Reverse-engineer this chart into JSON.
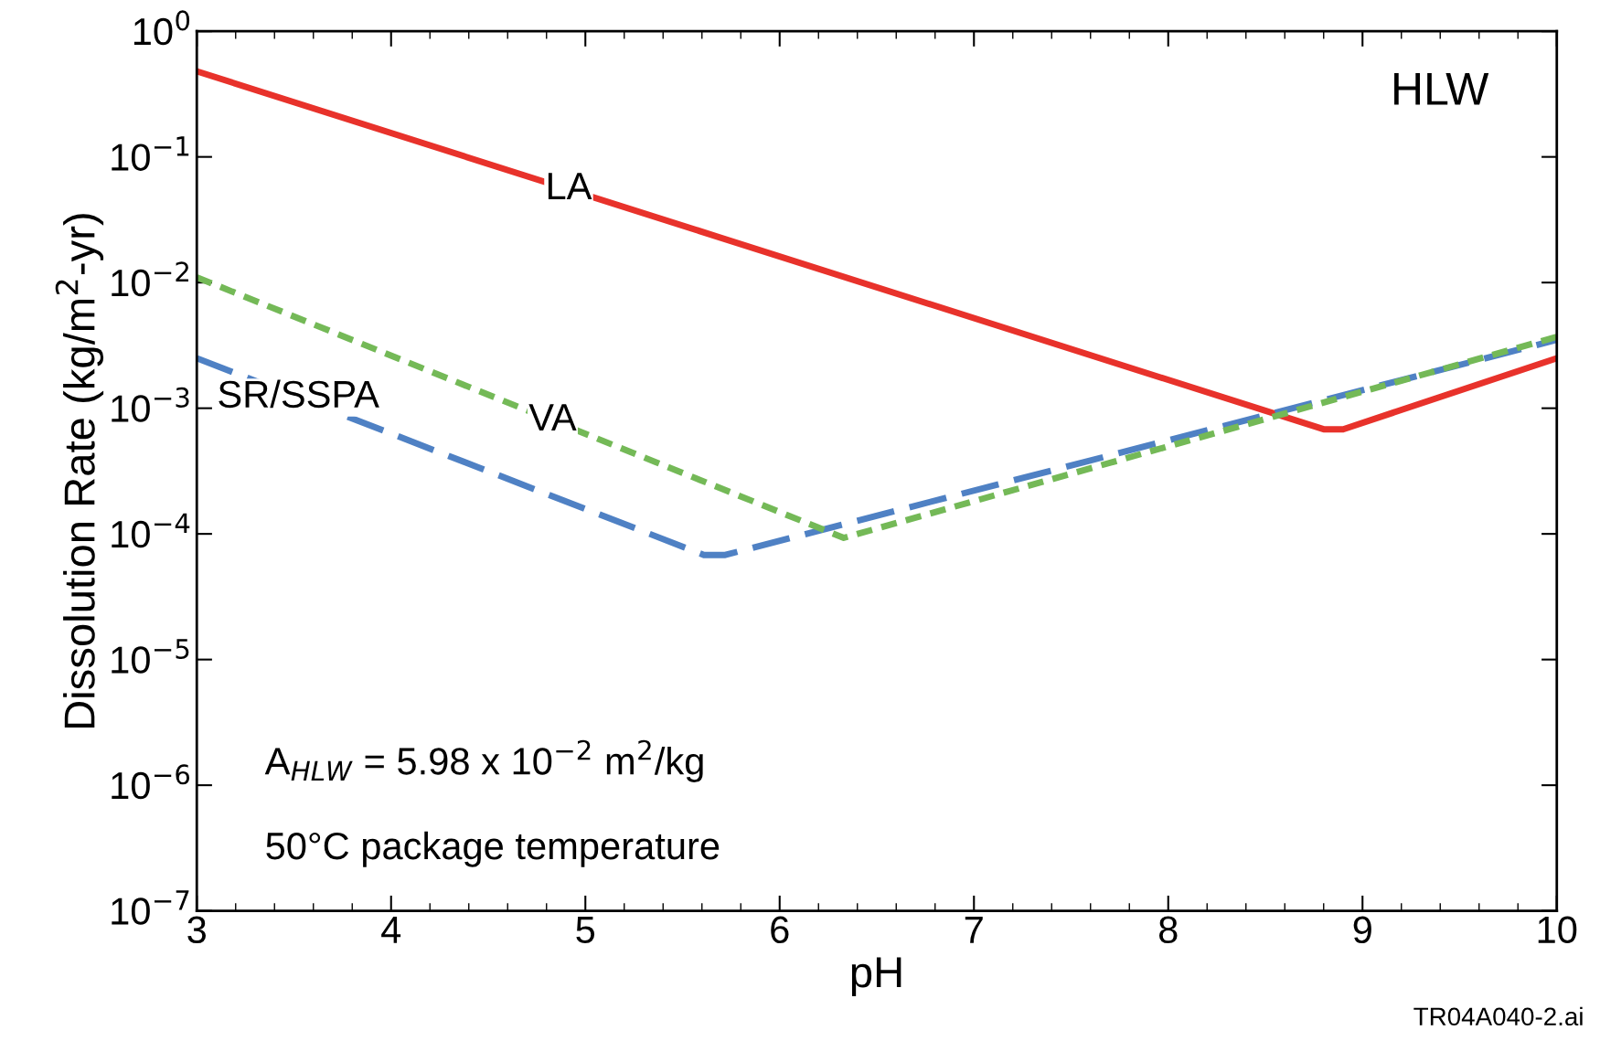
{
  "chart_data": {
    "type": "line",
    "xlabel": "pH",
    "ylabel": "Dissolution Rate (kg/m$^{2}$-yr)",
    "log": "y",
    "xlim": [
      3,
      10
    ],
    "xticks": [
      3,
      4,
      5,
      6,
      7,
      8,
      9,
      10
    ],
    "ylim": [
      1e-07,
      1
    ],
    "yticks": [
      {
        "value": 1e-07,
        "label": "10$^{−7}$"
      },
      {
        "value": 1e-06,
        "label": "10$^{−6}$"
      },
      {
        "value": 1e-05,
        "label": "10$^{−5}$"
      },
      {
        "value": 0.0001,
        "label": "10$^{−4}$"
      },
      {
        "value": 0.001,
        "label": "10$^{−3}$"
      },
      {
        "value": 0.01,
        "label": "10$^{−2}$"
      },
      {
        "value": 0.1,
        "label": "10$^{−1}$"
      },
      {
        "value": 1,
        "label": "10$^{0}$"
      }
    ],
    "grid": false,
    "legend": false,
    "marker": "none",
    "series": [
      {
        "name": "LA",
        "color": "#e8322b",
        "line_style": "solid",
        "x": [
          3,
          8.8,
          8.9,
          10
        ],
        "values": [
          0.48,
          0.00068,
          0.00068,
          0.0025
        ]
      },
      {
        "name": "SR/SSPA",
        "color": "#4f81c4",
        "line_style": "dashed",
        "x": [
          3,
          5.61,
          5.72,
          10
        ],
        "values": [
          0.0025,
          6.8e-05,
          6.8e-05,
          0.0035
        ]
      },
      {
        "name": "VA",
        "color": "#74b957",
        "line_style": "dashed",
        "x": [
          3,
          6.33,
          10
        ],
        "values": [
          0.011,
          9.3e-05,
          0.0037
        ]
      }
    ],
    "annotations": [
      "HLW",
      "A$_{HLW}$ = 5.98 x 10$^{−2}$ m$^{2}$/kg",
      "50°C package temperature",
      "TR04A040-2.ai"
    ]
  }
}
